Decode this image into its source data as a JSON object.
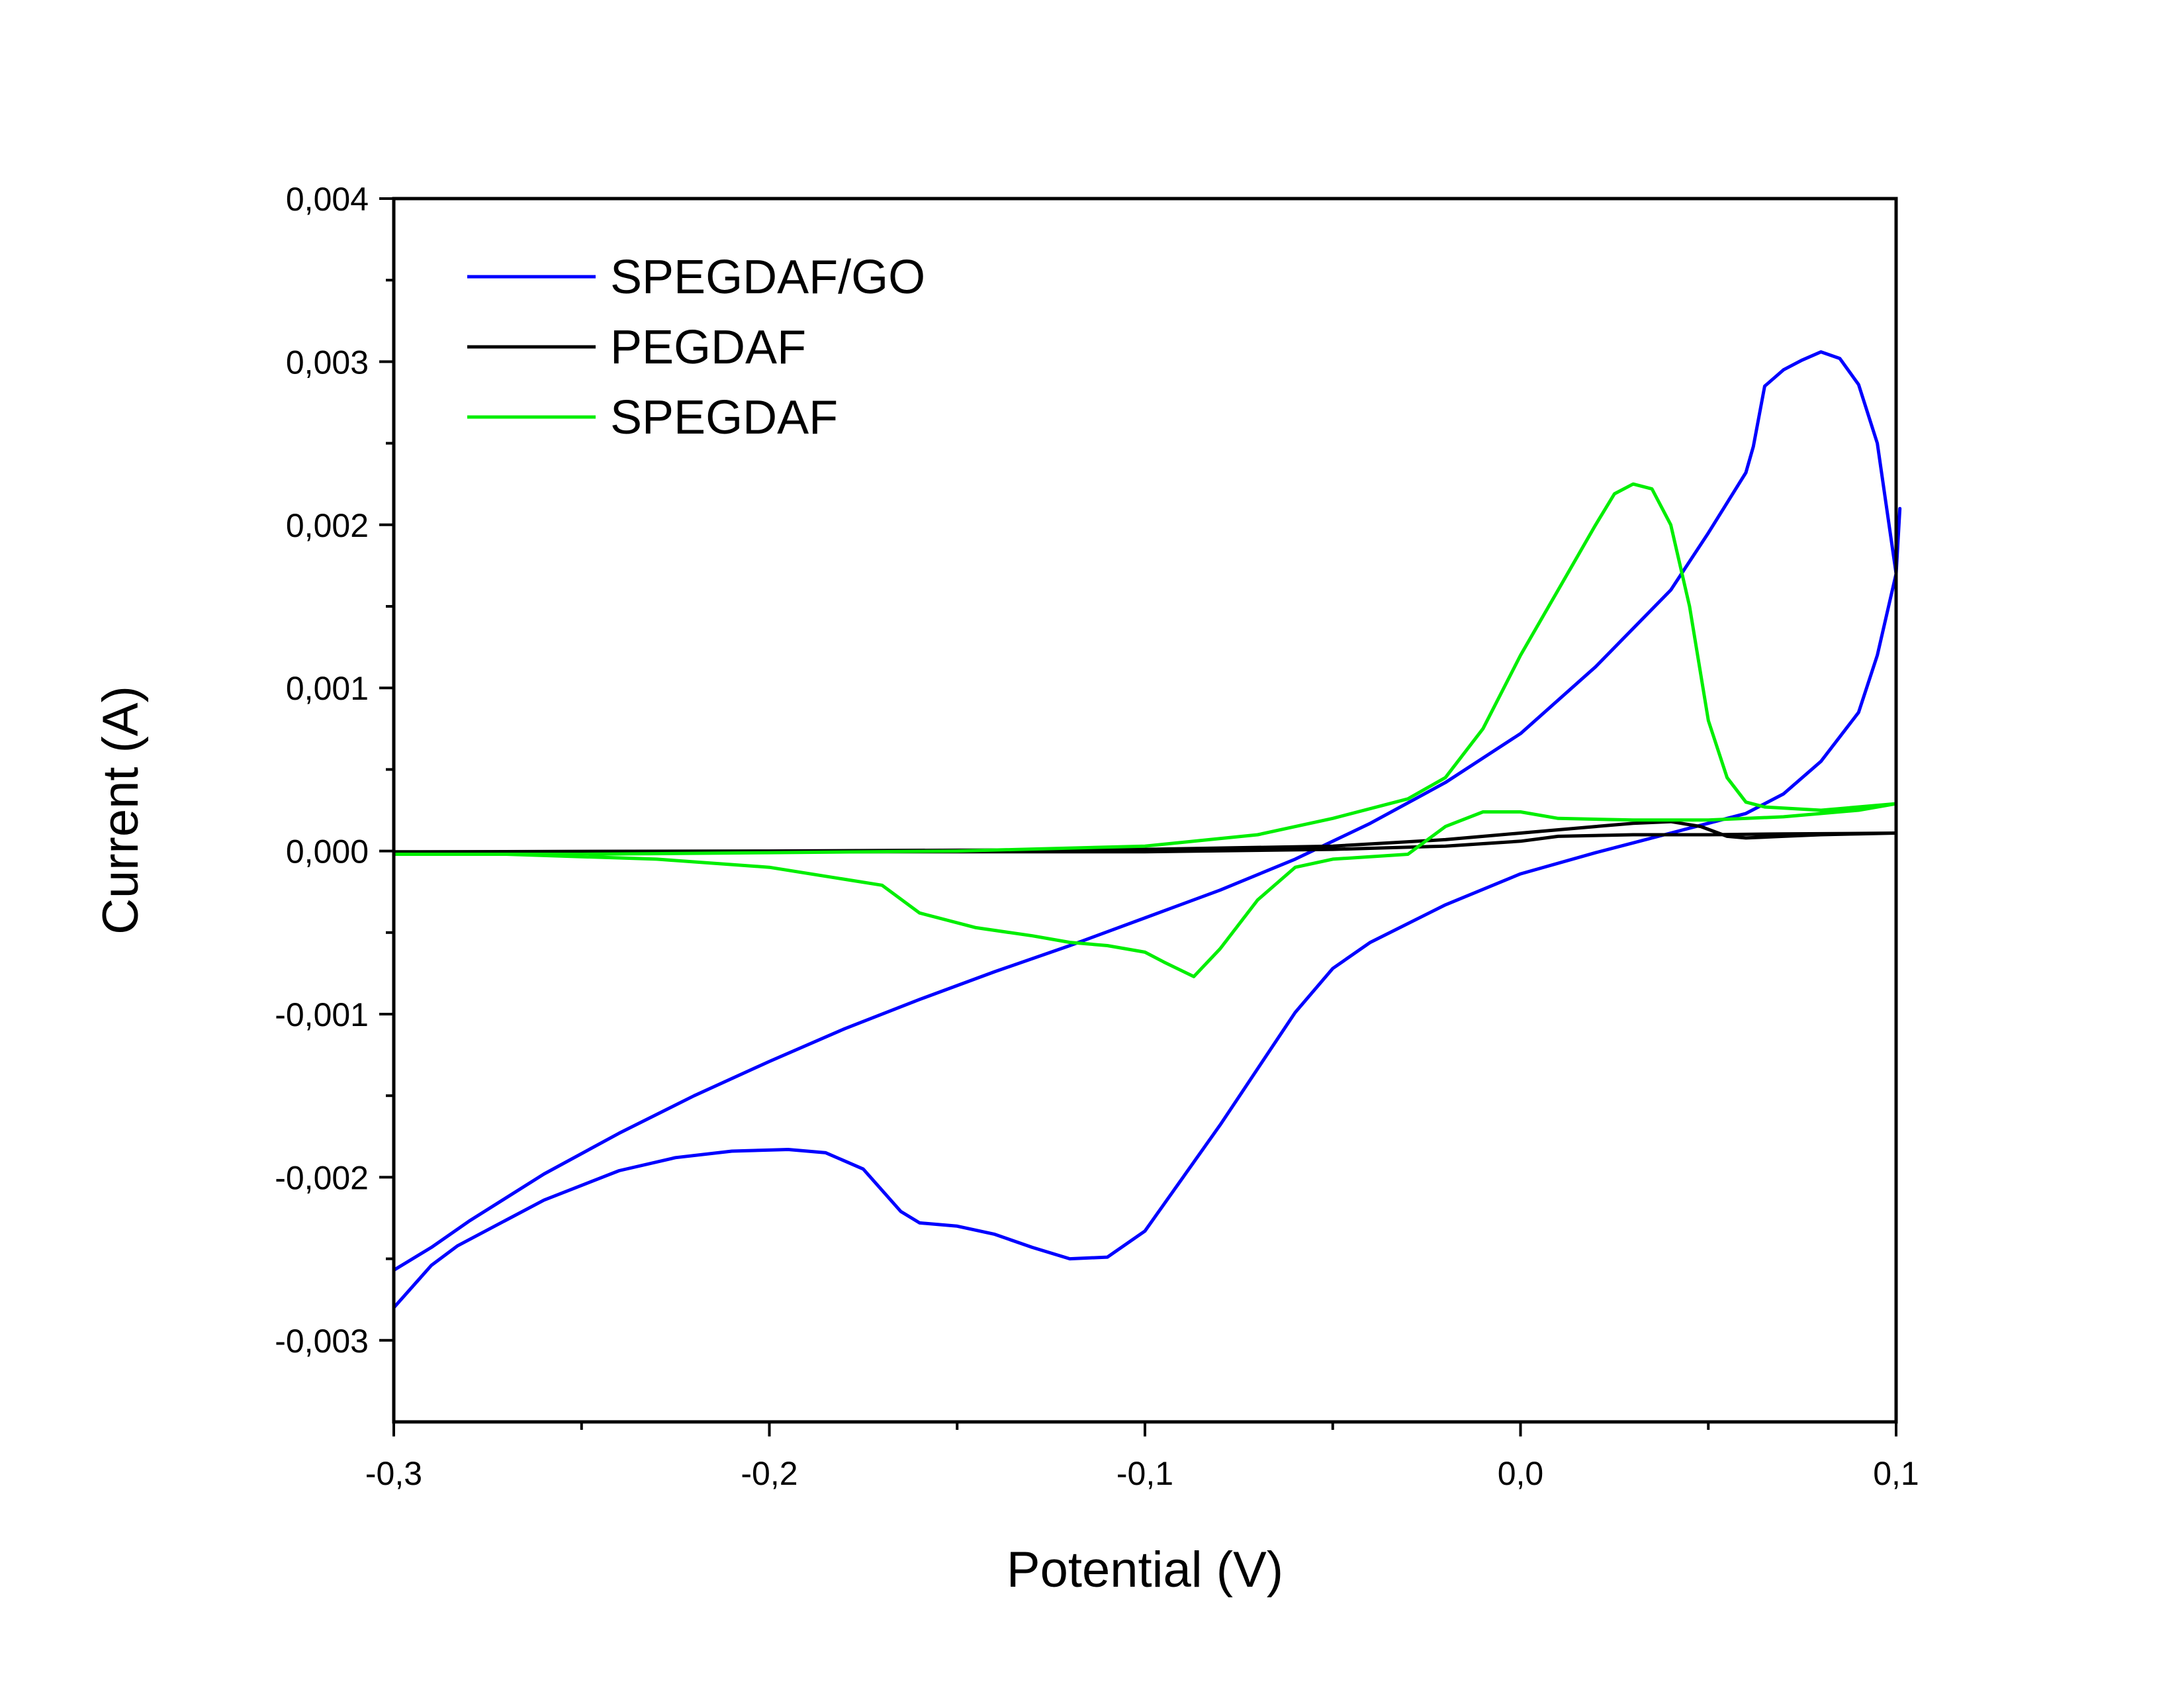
{
  "chart_data": {
    "type": "line",
    "title": "",
    "xlabel": "Potential (V)",
    "ylabel": "Current (A)",
    "xlim": [
      -0.3,
      0.1
    ],
    "ylim": [
      -0.0035,
      0.004
    ],
    "x_ticks": [
      {
        "value": -0.3,
        "label": "-0,3"
      },
      {
        "value": -0.2,
        "label": "-0,2"
      },
      {
        "value": -0.1,
        "label": "-0,1"
      },
      {
        "value": 0.0,
        "label": "0,0"
      },
      {
        "value": 0.1,
        "label": "0,1"
      }
    ],
    "x_minor_ticks": [
      -0.25,
      -0.15,
      -0.05,
      0.05
    ],
    "y_ticks": [
      {
        "value": 0.004,
        "label": "0,004"
      },
      {
        "value": 0.003,
        "label": "0,003"
      },
      {
        "value": 0.002,
        "label": "0,002"
      },
      {
        "value": 0.001,
        "label": "0,001"
      },
      {
        "value": 0.0,
        "label": "0,000"
      },
      {
        "value": -0.001,
        "label": "-0,001"
      },
      {
        "value": -0.002,
        "label": "-0,002"
      },
      {
        "value": -0.003,
        "label": "-0,003"
      }
    ],
    "y_minor_ticks": [
      0.0035,
      0.0025,
      0.0015,
      0.0005,
      -0.0005,
      -0.0015,
      -0.0025
    ],
    "legend_position": "top-left",
    "series": [
      {
        "name": "SPEGDAF/GO",
        "color": "#0000ff",
        "x": [
          -0.3,
          -0.29,
          -0.28,
          -0.26,
          -0.24,
          -0.22,
          -0.2,
          -0.18,
          -0.16,
          -0.14,
          -0.12,
          -0.1,
          -0.08,
          -0.06,
          -0.04,
          -0.02,
          0.0,
          0.02,
          0.04,
          0.05,
          0.06,
          0.062,
          0.065,
          0.07,
          0.075,
          0.08,
          0.085,
          0.09,
          0.095,
          0.1,
          0.101,
          0.1,
          0.095,
          0.09,
          0.08,
          0.07,
          0.06,
          0.05,
          0.04,
          0.03,
          0.02,
          0.0,
          -0.02,
          -0.04,
          -0.05,
          -0.06,
          -0.08,
          -0.1,
          -0.11,
          -0.12,
          -0.13,
          -0.14,
          -0.15,
          -0.16,
          -0.165,
          -0.175,
          -0.185,
          -0.195,
          -0.21,
          -0.225,
          -0.24,
          -0.26,
          -0.283,
          -0.29,
          -0.3
        ],
        "y": [
          -0.00257,
          -0.00243,
          -0.00227,
          -0.00198,
          -0.00173,
          -0.0015,
          -0.00129,
          -0.00109,
          -0.00091,
          -0.00074,
          -0.00058,
          -0.00041,
          -0.00024,
          -5e-05,
          0.00017,
          0.00042,
          0.00072,
          0.00113,
          0.0016,
          0.00195,
          0.00232,
          0.00248,
          0.00285,
          0.00295,
          0.00301,
          0.00306,
          0.00302,
          0.00286,
          0.0025,
          0.0017,
          0.0021,
          0.0017,
          0.0012,
          0.00085,
          0.00055,
          0.00035,
          0.00023,
          0.00017,
          0.00011,
          5e-05,
          -1e-05,
          -0.00014,
          -0.00033,
          -0.00056,
          -0.00072,
          -0.00099,
          -0.00168,
          -0.00233,
          -0.00249,
          -0.0025,
          -0.00243,
          -0.00235,
          -0.0023,
          -0.00228,
          -0.00221,
          -0.00195,
          -0.00185,
          -0.00183,
          -0.00184,
          -0.00188,
          -0.00196,
          -0.00214,
          -0.00242,
          -0.00254,
          -0.0028
        ]
      },
      {
        "name": "PEGDAF",
        "color": "#000000",
        "x": [
          -0.3,
          -0.2,
          -0.1,
          -0.05,
          -0.02,
          0.0,
          0.02,
          0.03,
          0.04,
          0.048,
          0.055,
          0.06,
          0.07,
          0.08,
          0.09,
          0.1,
          0.09,
          0.07,
          0.05,
          0.03,
          0.01,
          0.0,
          -0.02,
          -0.05,
          -0.1,
          -0.2,
          -0.3
        ],
        "y": [
          -5e-06,
          0.0,
          1e-05,
          3e-05,
          7e-05,
          0.00011,
          0.00015,
          0.00017,
          0.00018,
          0.00015,
          9e-05,
          8e-05,
          9e-05,
          0.0001,
          0.000105,
          0.00011,
          0.000108,
          0.000105,
          0.0001,
          0.0001,
          9e-05,
          6e-05,
          3e-05,
          1e-05,
          -5e-06,
          -5e-06,
          -5e-06
        ]
      },
      {
        "name": "SPEGDAF",
        "color": "#00ee00",
        "x": [
          -0.3,
          -0.25,
          -0.2,
          -0.15,
          -0.1,
          -0.07,
          -0.05,
          -0.03,
          -0.02,
          -0.01,
          0.0,
          0.01,
          0.02,
          0.025,
          0.03,
          0.035,
          0.04,
          0.045,
          0.05,
          0.055,
          0.06,
          0.065,
          0.08,
          0.1,
          0.09,
          0.07,
          0.05,
          0.03,
          0.01,
          0.0,
          -0.01,
          -0.02,
          -0.03,
          -0.05,
          -0.06,
          -0.07,
          -0.08,
          -0.087,
          -0.095,
          -0.1,
          -0.11,
          -0.12,
          -0.13,
          -0.145,
          -0.16,
          -0.17,
          -0.2,
          -0.23,
          -0.27,
          -0.3
        ],
        "y": [
          -2e-05,
          -2e-05,
          -1e-05,
          0.0,
          3e-05,
          0.0001,
          0.0002,
          0.00032,
          0.00045,
          0.00075,
          0.0012,
          0.0016,
          0.002,
          0.00219,
          0.00225,
          0.00222,
          0.002,
          0.0015,
          0.0008,
          0.00045,
          0.0003,
          0.00027,
          0.00025,
          0.00029,
          0.00025,
          0.00021,
          0.00019,
          0.00019,
          0.0002,
          0.00024,
          0.00024,
          0.00015,
          -2e-05,
          -5e-05,
          -0.0001,
          -0.0003,
          -0.0006,
          -0.00077,
          -0.00068,
          -0.00062,
          -0.00058,
          -0.00056,
          -0.00052,
          -0.00047,
          -0.00038,
          -0.00021,
          -0.0001,
          -5e-05,
          -2e-05,
          -2e-05
        ]
      }
    ]
  }
}
